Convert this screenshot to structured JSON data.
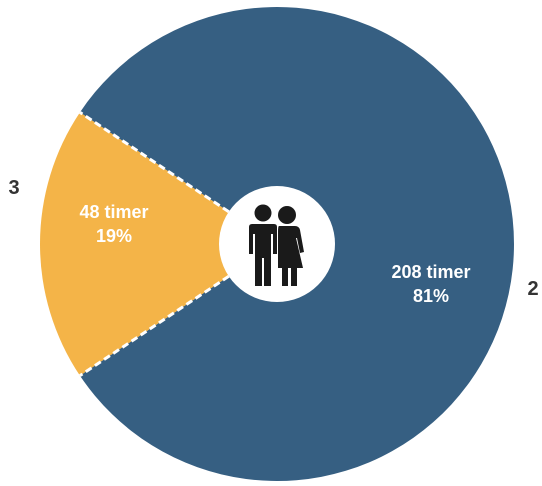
{
  "chart_data": {
    "type": "pie",
    "title": "",
    "categories": [
      "2",
      "3"
    ],
    "values": [
      208,
      48
    ],
    "percents": [
      81,
      19
    ],
    "slice_labels": [
      "208 timer",
      "48 timer"
    ],
    "percent_labels": [
      "81%",
      "19%"
    ],
    "outside_labels": [
      "2",
      "3"
    ],
    "colors": [
      "#365f82",
      "#f4b448"
    ],
    "center_icon": "couple-icon",
    "center_color": "#ffffff",
    "icon_color": "#1a1a1a",
    "separator_style": "dashed-white"
  }
}
